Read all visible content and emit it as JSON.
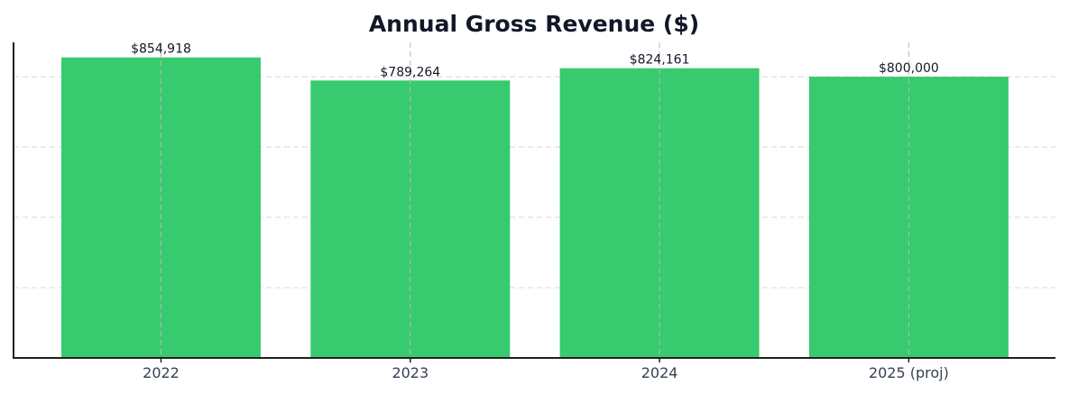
{
  "chart_data": {
    "type": "bar",
    "title": "Annual Gross Revenue ($)",
    "xlabel": "",
    "ylabel": "",
    "categories": [
      "2022",
      "2023",
      "2024",
      "2025 (proj)"
    ],
    "values": [
      854918,
      789264,
      824161,
      800000
    ],
    "data_labels": [
      "$854,918",
      "$789,264",
      "$824,161",
      "$800,000"
    ],
    "ylim": [
      0,
      897664
    ],
    "y_gridlines": [
      200000,
      400000,
      600000,
      800000
    ],
    "y_tick_labels_visible": false,
    "grid": true,
    "grid_style": "dashed",
    "legend": "none",
    "colors": {
      "bar": "#38ca6e",
      "axis": "#1f1f1f",
      "grid": "#d9d9d9",
      "title": "#111827"
    }
  }
}
